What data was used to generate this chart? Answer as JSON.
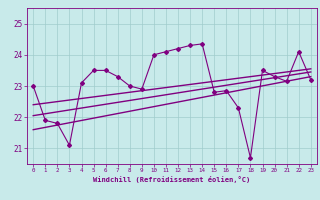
{
  "x": [
    0,
    1,
    2,
    3,
    4,
    5,
    6,
    7,
    8,
    9,
    10,
    11,
    12,
    13,
    14,
    15,
    16,
    17,
    18,
    19,
    20,
    21,
    22,
    23
  ],
  "y": [
    23.0,
    21.9,
    21.8,
    21.1,
    23.1,
    23.5,
    23.5,
    23.3,
    23.0,
    22.9,
    24.0,
    24.1,
    24.2,
    24.3,
    24.35,
    22.8,
    22.85,
    22.3,
    20.7,
    23.5,
    23.3,
    23.15,
    24.1,
    23.2
  ],
  "trend1_x": [
    0,
    23
  ],
  "trend1_y": [
    21.6,
    23.3
  ],
  "trend2_x": [
    0,
    23
  ],
  "trend2_y": [
    22.05,
    23.45
  ],
  "trend3_x": [
    0,
    23
  ],
  "trend3_y": [
    22.4,
    23.55
  ],
  "ylim": [
    20.5,
    25.5
  ],
  "yticks": [
    21,
    22,
    23,
    24,
    25
  ],
  "xticks": [
    0,
    1,
    2,
    3,
    4,
    5,
    6,
    7,
    8,
    9,
    10,
    11,
    12,
    13,
    14,
    15,
    16,
    17,
    18,
    19,
    20,
    21,
    22,
    23
  ],
  "xlabel": "Windchill (Refroidissement éolien,°C)",
  "line_color": "#800080",
  "bg_color": "#c8eaea",
  "grid_color": "#a0cccc",
  "marker": "D"
}
